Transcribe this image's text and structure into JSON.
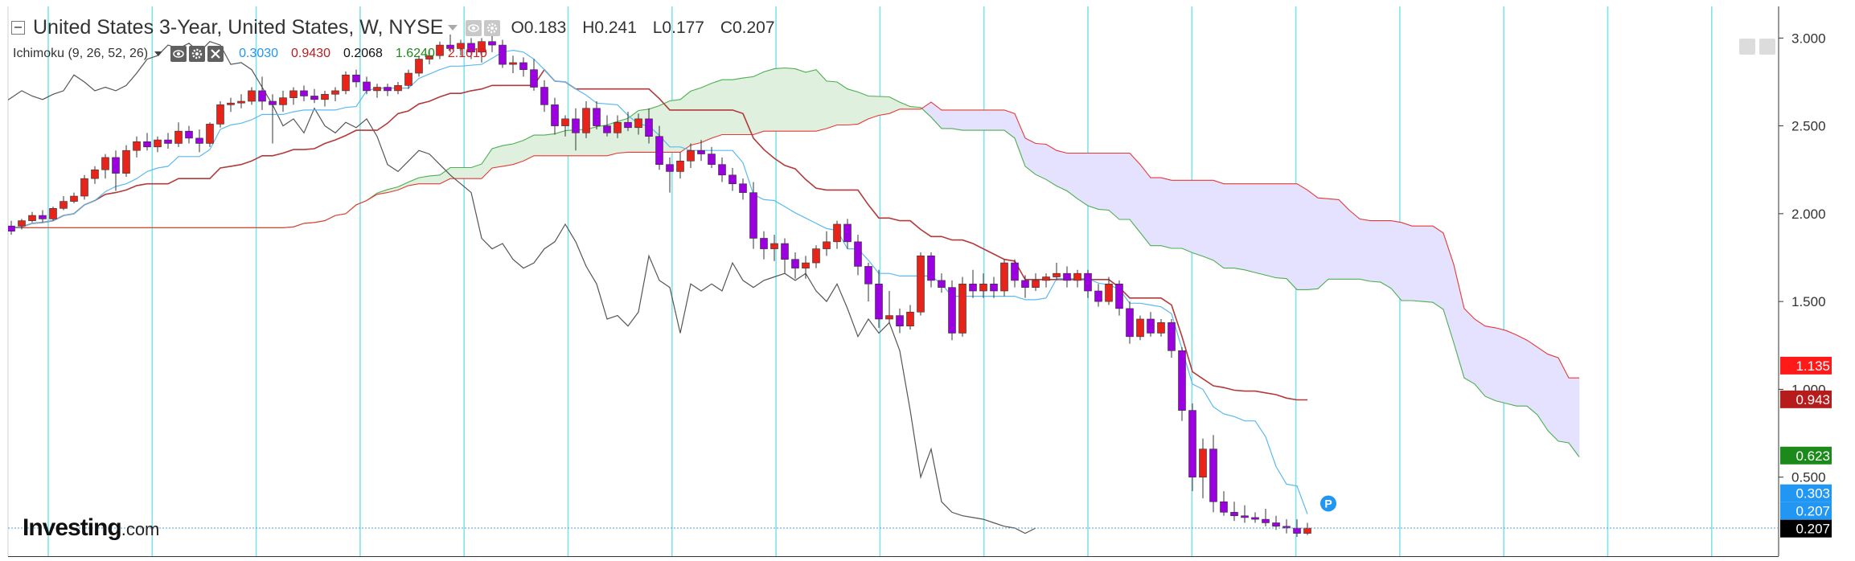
{
  "header": {
    "title": "United States 3-Year, United States, W, NYSE",
    "ohlc": [
      "O0.183",
      "H0.241",
      "L0.177",
      "C0.207"
    ]
  },
  "indicator": {
    "name": "Ichimoku (9, 26, 52, 26)",
    "values": [
      "0.3030",
      "0.9430",
      "0.2068",
      "1.6240",
      "2.1010"
    ],
    "colors": [
      "#2196f3",
      "#b71c1c",
      "#111111",
      "#1b8a1b",
      "#d81b1b"
    ]
  },
  "logo": {
    "bold": "Investing",
    "suffix": ".com"
  },
  "chart_data": {
    "type": "candlestick",
    "ylim": [
      0.05,
      3.18
    ],
    "y_ticks": [
      "3.000",
      "2.500",
      "2.000",
      "1.500",
      "1.000",
      "0.500"
    ],
    "grid": "vertical cyan lines",
    "colors": {
      "up": "#e8231a",
      "down": "#9b00e0",
      "tenkan": "#5bb9f0",
      "kijun": "#b23a3a",
      "chikou": "#555555",
      "span_a": "#4caf50",
      "span_b": "#e53935",
      "cloud_bull": "#dff0df",
      "cloud_bear": "#e4e2ff"
    },
    "candles": [
      [
        1.93,
        1.96,
        1.88,
        1.9
      ],
      [
        1.93,
        1.97,
        1.91,
        1.96
      ],
      [
        1.96,
        2.01,
        1.95,
        1.99
      ],
      [
        1.99,
        2.02,
        1.95,
        1.97
      ],
      [
        1.97,
        2.04,
        1.96,
        2.03
      ],
      [
        2.03,
        2.1,
        2.02,
        2.07
      ],
      [
        2.07,
        2.12,
        2.06,
        2.1
      ],
      [
        2.1,
        2.22,
        2.08,
        2.2
      ],
      [
        2.2,
        2.27,
        2.17,
        2.25
      ],
      [
        2.25,
        2.34,
        2.2,
        2.32
      ],
      [
        2.32,
        2.36,
        2.13,
        2.23
      ],
      [
        2.23,
        2.39,
        2.21,
        2.36
      ],
      [
        2.36,
        2.44,
        2.32,
        2.41
      ],
      [
        2.41,
        2.46,
        2.36,
        2.38
      ],
      [
        2.38,
        2.44,
        2.35,
        2.42
      ],
      [
        2.42,
        2.46,
        2.37,
        2.4
      ],
      [
        2.4,
        2.52,
        2.38,
        2.47
      ],
      [
        2.47,
        2.5,
        2.4,
        2.43
      ],
      [
        2.43,
        2.48,
        2.35,
        2.4
      ],
      [
        2.4,
        2.52,
        2.38,
        2.51
      ],
      [
        2.51,
        2.64,
        2.49,
        2.62
      ],
      [
        2.62,
        2.66,
        2.58,
        2.63
      ],
      [
        2.63,
        2.68,
        2.6,
        2.64
      ],
      [
        2.64,
        2.72,
        2.62,
        2.7
      ],
      [
        2.7,
        2.78,
        2.59,
        2.64
      ],
      [
        2.64,
        2.68,
        2.4,
        2.62
      ],
      [
        2.62,
        2.7,
        2.58,
        2.66
      ],
      [
        2.66,
        2.72,
        2.62,
        2.7
      ],
      [
        2.7,
        2.73,
        2.64,
        2.67
      ],
      [
        2.67,
        2.71,
        2.63,
        2.65
      ],
      [
        2.65,
        2.7,
        2.61,
        2.68
      ],
      [
        2.68,
        2.72,
        2.64,
        2.7
      ],
      [
        2.7,
        2.81,
        2.68,
        2.79
      ],
      [
        2.79,
        2.82,
        2.72,
        2.75
      ],
      [
        2.75,
        2.78,
        2.68,
        2.7
      ],
      [
        2.7,
        2.74,
        2.66,
        2.72
      ],
      [
        2.72,
        2.74,
        2.67,
        2.7
      ],
      [
        2.7,
        2.75,
        2.68,
        2.73
      ],
      [
        2.73,
        2.82,
        2.71,
        2.8
      ],
      [
        2.8,
        2.9,
        2.78,
        2.88
      ],
      [
        2.88,
        2.93,
        2.85,
        2.9
      ],
      [
        2.9,
        2.98,
        2.88,
        2.96
      ],
      [
        2.96,
        3.02,
        2.92,
        2.94
      ],
      [
        2.94,
        2.99,
        2.9,
        2.97
      ],
      [
        2.97,
        3.0,
        2.88,
        2.92
      ],
      [
        2.92,
        3.0,
        2.86,
        2.98
      ],
      [
        2.98,
        3.06,
        2.92,
        2.96
      ],
      [
        2.96,
        2.99,
        2.83,
        2.85
      ],
      [
        2.85,
        2.9,
        2.8,
        2.86
      ],
      [
        2.86,
        2.89,
        2.78,
        2.82
      ],
      [
        2.82,
        2.88,
        2.7,
        2.72
      ],
      [
        2.72,
        2.76,
        2.58,
        2.62
      ],
      [
        2.62,
        2.66,
        2.45,
        2.5
      ],
      [
        2.5,
        2.56,
        2.44,
        2.54
      ],
      [
        2.54,
        2.6,
        2.36,
        2.46
      ],
      [
        2.46,
        2.64,
        2.43,
        2.6
      ],
      [
        2.6,
        2.64,
        2.48,
        2.5
      ],
      [
        2.5,
        2.56,
        2.44,
        2.46
      ],
      [
        2.46,
        2.56,
        2.43,
        2.52
      ],
      [
        2.52,
        2.58,
        2.47,
        2.49
      ],
      [
        2.49,
        2.57,
        2.45,
        2.54
      ],
      [
        2.54,
        2.6,
        2.4,
        2.44
      ],
      [
        2.44,
        2.5,
        2.25,
        2.28
      ],
      [
        2.28,
        2.32,
        2.12,
        2.24
      ],
      [
        2.24,
        2.35,
        2.2,
        2.3
      ],
      [
        2.3,
        2.4,
        2.26,
        2.36
      ],
      [
        2.36,
        2.42,
        2.3,
        2.34
      ],
      [
        2.34,
        2.38,
        2.26,
        2.28
      ],
      [
        2.28,
        2.32,
        2.18,
        2.22
      ],
      [
        2.22,
        2.26,
        2.13,
        2.17
      ],
      [
        2.17,
        2.2,
        2.08,
        2.12
      ],
      [
        2.12,
        2.18,
        1.8,
        1.86
      ],
      [
        1.86,
        1.9,
        1.74,
        1.8
      ],
      [
        1.8,
        1.88,
        1.73,
        1.83
      ],
      [
        1.83,
        1.86,
        1.66,
        1.74
      ],
      [
        1.74,
        1.78,
        1.63,
        1.69
      ],
      [
        1.69,
        1.76,
        1.63,
        1.72
      ],
      [
        1.72,
        1.82,
        1.69,
        1.8
      ],
      [
        1.8,
        1.9,
        1.76,
        1.84
      ],
      [
        1.84,
        1.96,
        1.8,
        1.94
      ],
      [
        1.94,
        1.97,
        1.8,
        1.84
      ],
      [
        1.84,
        1.88,
        1.65,
        1.7
      ],
      [
        1.7,
        1.72,
        1.5,
        1.6
      ],
      [
        1.6,
        1.68,
        1.35,
        1.4
      ],
      [
        1.4,
        1.56,
        1.38,
        1.42
      ],
      [
        1.42,
        1.46,
        1.32,
        1.36
      ],
      [
        1.36,
        1.48,
        1.34,
        1.44
      ],
      [
        1.44,
        1.78,
        1.42,
        1.76
      ],
      [
        1.76,
        1.78,
        1.58,
        1.62
      ],
      [
        1.62,
        1.66,
        1.55,
        1.58
      ],
      [
        1.58,
        1.62,
        1.28,
        1.32
      ],
      [
        1.32,
        1.64,
        1.3,
        1.6
      ],
      [
        1.6,
        1.68,
        1.52,
        1.56
      ],
      [
        1.56,
        1.66,
        1.52,
        1.6
      ],
      [
        1.6,
        1.64,
        1.52,
        1.56
      ],
      [
        1.56,
        1.74,
        1.53,
        1.72
      ],
      [
        1.72,
        1.74,
        1.58,
        1.62
      ],
      [
        1.62,
        1.65,
        1.52,
        1.58
      ],
      [
        1.58,
        1.66,
        1.56,
        1.62
      ],
      [
        1.62,
        1.66,
        1.58,
        1.64
      ],
      [
        1.64,
        1.72,
        1.62,
        1.66
      ],
      [
        1.66,
        1.7,
        1.58,
        1.62
      ],
      [
        1.62,
        1.68,
        1.58,
        1.66
      ],
      [
        1.66,
        1.68,
        1.52,
        1.56
      ],
      [
        1.56,
        1.6,
        1.47,
        1.5
      ],
      [
        1.5,
        1.64,
        1.48,
        1.6
      ],
      [
        1.6,
        1.62,
        1.42,
        1.46
      ],
      [
        1.46,
        1.5,
        1.26,
        1.3
      ],
      [
        1.3,
        1.42,
        1.28,
        1.4
      ],
      [
        1.4,
        1.44,
        1.3,
        1.32
      ],
      [
        1.32,
        1.4,
        1.3,
        1.38
      ],
      [
        1.38,
        1.4,
        1.18,
        1.22
      ],
      [
        1.22,
        1.24,
        0.82,
        0.88
      ],
      [
        0.88,
        0.92,
        0.42,
        0.5
      ],
      [
        0.5,
        0.72,
        0.38,
        0.66
      ],
      [
        0.66,
        0.74,
        0.3,
        0.36
      ],
      [
        0.36,
        0.42,
        0.28,
        0.3
      ],
      [
        0.3,
        0.36,
        0.25,
        0.28
      ],
      [
        0.28,
        0.34,
        0.24,
        0.27
      ],
      [
        0.27,
        0.3,
        0.24,
        0.26
      ],
      [
        0.26,
        0.32,
        0.22,
        0.24
      ],
      [
        0.24,
        0.28,
        0.2,
        0.22
      ],
      [
        0.22,
        0.26,
        0.18,
        0.21
      ],
      [
        0.21,
        0.26,
        0.16,
        0.18
      ],
      [
        0.18,
        0.24,
        0.17,
        0.21
      ]
    ],
    "markers": [
      {
        "label": "P",
        "index": 126,
        "value": 0.35
      }
    ],
    "last_values": [
      {
        "value": 1.135,
        "label": "1.135",
        "bg": "#ff1a1a"
      },
      {
        "value": 0.943,
        "label": "0.943",
        "bg": "#b71c1c"
      },
      {
        "value": 0.623,
        "label": "0.623",
        "bg": "#1b8a1b"
      },
      {
        "value": 0.303,
        "label": "0.303",
        "bg": "#2196f3"
      },
      {
        "value": 0.207,
        "label": "0.207",
        "bg": "#2196f3"
      },
      {
        "value": 0.207,
        "label": "0.207",
        "bg": "#000000"
      }
    ]
  }
}
